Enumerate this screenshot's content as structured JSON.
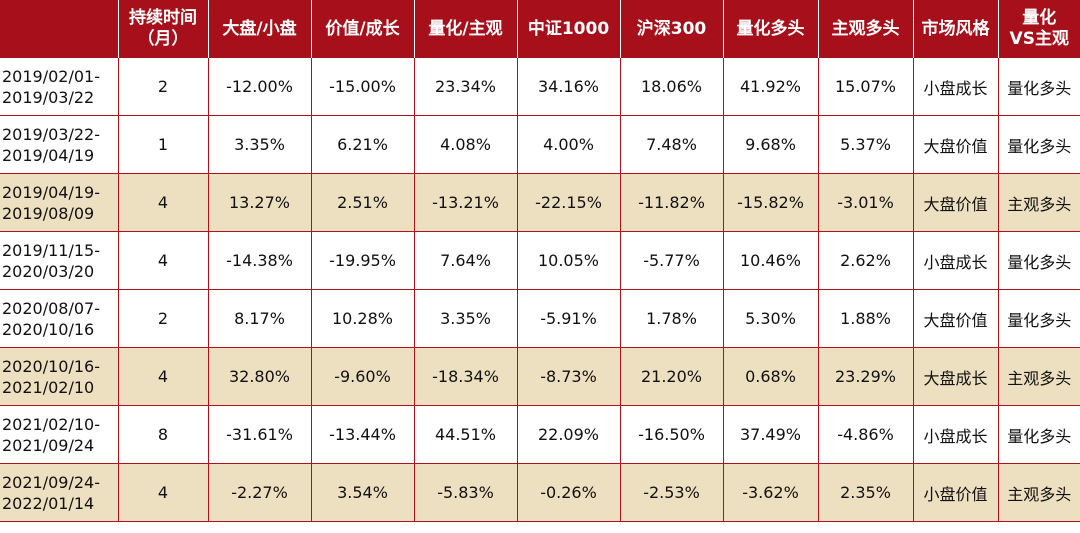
{
  "columns": [
    "",
    "持续时间（月）",
    "大盘/小盘",
    "价值/成长",
    "量化/主观",
    "中证1000",
    "沪深300",
    "量化多头",
    "主观多头",
    "市场风格",
    "量化VS主观"
  ],
  "column_lines": [
    [
      ""
    ],
    [
      "持续时间",
      "（月）"
    ],
    [
      "大盘/小盘"
    ],
    [
      "价值/成长"
    ],
    [
      "量化/主观"
    ],
    [
      "中证1000"
    ],
    [
      "沪深300"
    ],
    [
      "量化多头"
    ],
    [
      "主观多头"
    ],
    [
      "市场风格"
    ],
    [
      "量化",
      "VS主观"
    ]
  ],
  "rows": [
    {
      "period": [
        "2019/02/01-",
        "2019/03/22"
      ],
      "duration": "2",
      "large_small": "-12.00%",
      "value_growth": "-15.00%",
      "quant_subjective": "23.34%",
      "csi1000": "34.16%",
      "hs300": "18.06%",
      "quant_long": "41.92%",
      "subj_long": "15.07%",
      "style": "小盘成长",
      "winner": "量化多头",
      "highlight": false
    },
    {
      "period": [
        "2019/03/22-",
        "2019/04/19"
      ],
      "duration": "1",
      "large_small": "3.35%",
      "value_growth": "6.21%",
      "quant_subjective": "4.08%",
      "csi1000": "4.00%",
      "hs300": "7.48%",
      "quant_long": "9.68%",
      "subj_long": "5.37%",
      "style": "大盘价值",
      "winner": "量化多头",
      "highlight": false
    },
    {
      "period": [
        "2019/04/19-",
        "2019/08/09"
      ],
      "duration": "4",
      "large_small": "13.27%",
      "value_growth": "2.51%",
      "quant_subjective": "-13.21%",
      "csi1000": "-22.15%",
      "hs300": "-11.82%",
      "quant_long": "-15.82%",
      "subj_long": "-3.01%",
      "style": "大盘价值",
      "winner": "主观多头",
      "highlight": true
    },
    {
      "period": [
        "2019/11/15-",
        "2020/03/20"
      ],
      "duration": "4",
      "large_small": "-14.38%",
      "value_growth": "-19.95%",
      "quant_subjective": "7.64%",
      "csi1000": "10.05%",
      "hs300": "-5.77%",
      "quant_long": "10.46%",
      "subj_long": "2.62%",
      "style": "小盘成长",
      "winner": "量化多头",
      "highlight": false
    },
    {
      "period": [
        "2020/08/07-",
        "2020/10/16"
      ],
      "duration": "2",
      "large_small": "8.17%",
      "value_growth": "10.28%",
      "quant_subjective": "3.35%",
      "csi1000": "-5.91%",
      "hs300": "1.78%",
      "quant_long": "5.30%",
      "subj_long": "1.88%",
      "style": "大盘价值",
      "winner": "量化多头",
      "highlight": false
    },
    {
      "period": [
        "2020/10/16-",
        "2021/02/10"
      ],
      "duration": "4",
      "large_small": "32.80%",
      "value_growth": "-9.60%",
      "quant_subjective": "-18.34%",
      "csi1000": "-8.73%",
      "hs300": "21.20%",
      "quant_long": "0.68%",
      "subj_long": "23.29%",
      "style": "大盘成长",
      "winner": "主观多头",
      "highlight": true
    },
    {
      "period": [
        "2021/02/10-",
        "2021/09/24"
      ],
      "duration": "8",
      "large_small": "-31.61%",
      "value_growth": "-13.44%",
      "quant_subjective": "44.51%",
      "csi1000": "22.09%",
      "hs300": "-16.50%",
      "quant_long": "37.49%",
      "subj_long": "-4.86%",
      "style": "小盘成长",
      "winner": "量化多头",
      "highlight": false
    },
    {
      "period": [
        "2021/09/24-",
        "2022/01/14"
      ],
      "duration": "4",
      "large_small": "-2.27%",
      "value_growth": "3.54%",
      "quant_subjective": "-5.83%",
      "csi1000": "-0.26%",
      "hs300": "-2.53%",
      "quant_long": "-3.62%",
      "subj_long": "2.35%",
      "style": "小盘价值",
      "winner": "主观多头",
      "highlight": true
    }
  ],
  "colors": {
    "header_bg": "#a7101a",
    "header_text": "#ffffff",
    "highlight_row": "#ede0c0",
    "border": "#b0121c"
  }
}
